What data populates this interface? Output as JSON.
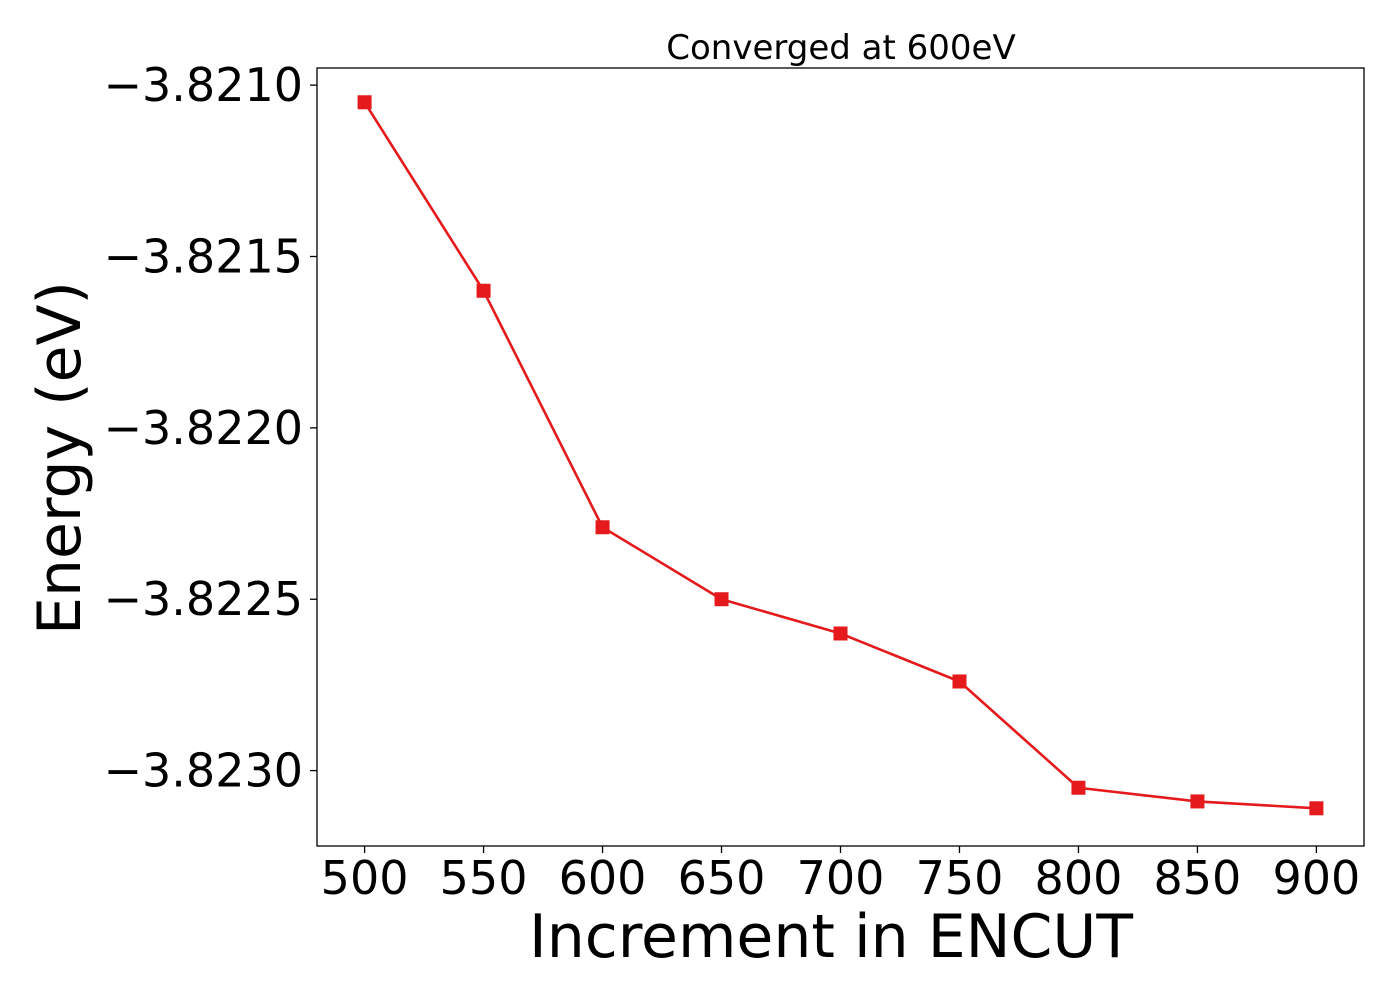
{
  "chart_data": {
    "type": "line",
    "title": "Converged at 600eV",
    "xlabel": "Increment in ENCUT",
    "ylabel": "Energy (eV)",
    "x": [
      500,
      550,
      600,
      650,
      700,
      750,
      800,
      850,
      900
    ],
    "x_ticks": [
      "500",
      "550",
      "600",
      "650",
      "700",
      "750",
      "800",
      "850",
      "900"
    ],
    "y_ticks": [
      "−3.8210",
      "−3.8215",
      "−3.8220",
      "−3.8225",
      "−3.8230"
    ],
    "y_tick_values": [
      -3.821,
      -3.8215,
      -3.822,
      -3.8225,
      -3.823
    ],
    "xlim": [
      480,
      920
    ],
    "ylim": [
      -3.82322,
      -3.82095
    ],
    "series": [
      {
        "values": [
          -3.82105,
          -3.8216,
          -3.82229,
          -3.8225,
          -3.8226,
          -3.82274,
          -3.82305,
          -3.82309,
          -3.82311
        ],
        "color": "#e41a1c",
        "marker": "square"
      }
    ],
    "grid": false
  }
}
